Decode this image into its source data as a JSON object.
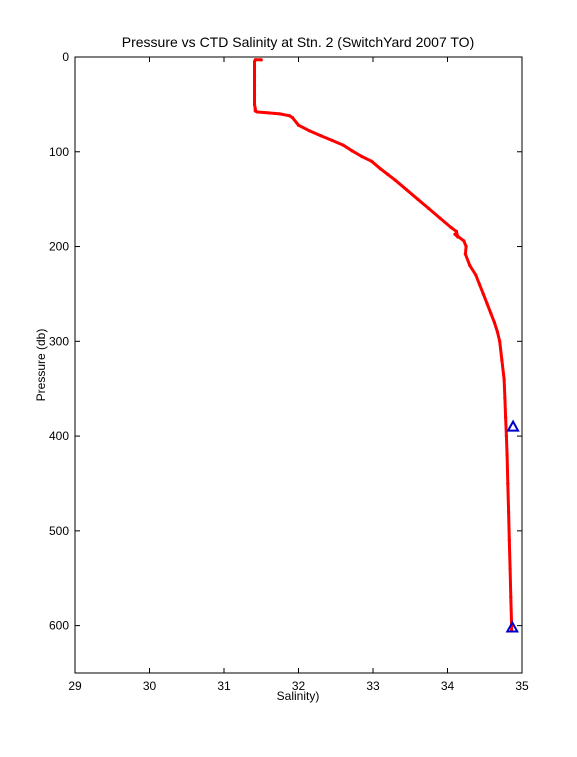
{
  "chart_data": {
    "type": "scatter",
    "title": "Pressure vs CTD Salinity at Stn. 2 (SwitchYard 2007 TO)",
    "xlabel": "Salinity)",
    "ylabel": "Pressure (db)",
    "xlim": [
      29,
      35
    ],
    "ylim": [
      0,
      650
    ],
    "y_reversed": true,
    "xticks": [
      29,
      30,
      31,
      32,
      33,
      34,
      35
    ],
    "yticks": [
      0,
      100,
      200,
      300,
      400,
      500,
      600
    ],
    "grid": false,
    "legend": "none",
    "series": [
      {
        "style": "red-dots-line",
        "color": "#ff0000",
        "x": [
          31.5,
          31.42,
          31.41,
          31.41,
          31.41,
          31.41,
          31.41,
          31.41,
          31.42,
          31.42,
          31.45,
          31.6,
          31.75,
          31.88,
          31.92,
          32.0,
          32.15,
          32.3,
          32.45,
          32.6,
          32.72,
          32.85,
          32.98,
          33.1,
          33.2,
          33.3,
          33.45,
          33.6,
          33.75,
          33.9,
          34.05,
          34.12,
          34.14,
          34.1,
          34.22,
          34.25,
          34.24,
          34.3,
          34.38,
          34.43,
          34.48,
          34.53,
          34.58,
          34.63,
          34.67,
          34.7,
          34.73,
          34.76,
          34.77,
          34.78,
          34.79,
          34.8,
          34.81,
          34.82,
          34.83,
          34.84,
          34.85,
          34.86,
          34.86
        ],
        "y": [
          3,
          3,
          5,
          10,
          20,
          30,
          40,
          50,
          55,
          57,
          58,
          59,
          60,
          62,
          64,
          72,
          78,
          83,
          88,
          93,
          99,
          105,
          110,
          118,
          124,
          130,
          140,
          150,
          160,
          170,
          180,
          184,
          190,
          187,
          194,
          200,
          208,
          220,
          230,
          240,
          250,
          260,
          270,
          280,
          290,
          300,
          320,
          340,
          360,
          380,
          400,
          420,
          450,
          480,
          510,
          540,
          570,
          600,
          605
        ]
      },
      {
        "style": "blue-triangles",
        "color": "#0000cc",
        "x": [
          34.88,
          34.87
        ],
        "y": [
          390,
          602
        ]
      }
    ]
  }
}
